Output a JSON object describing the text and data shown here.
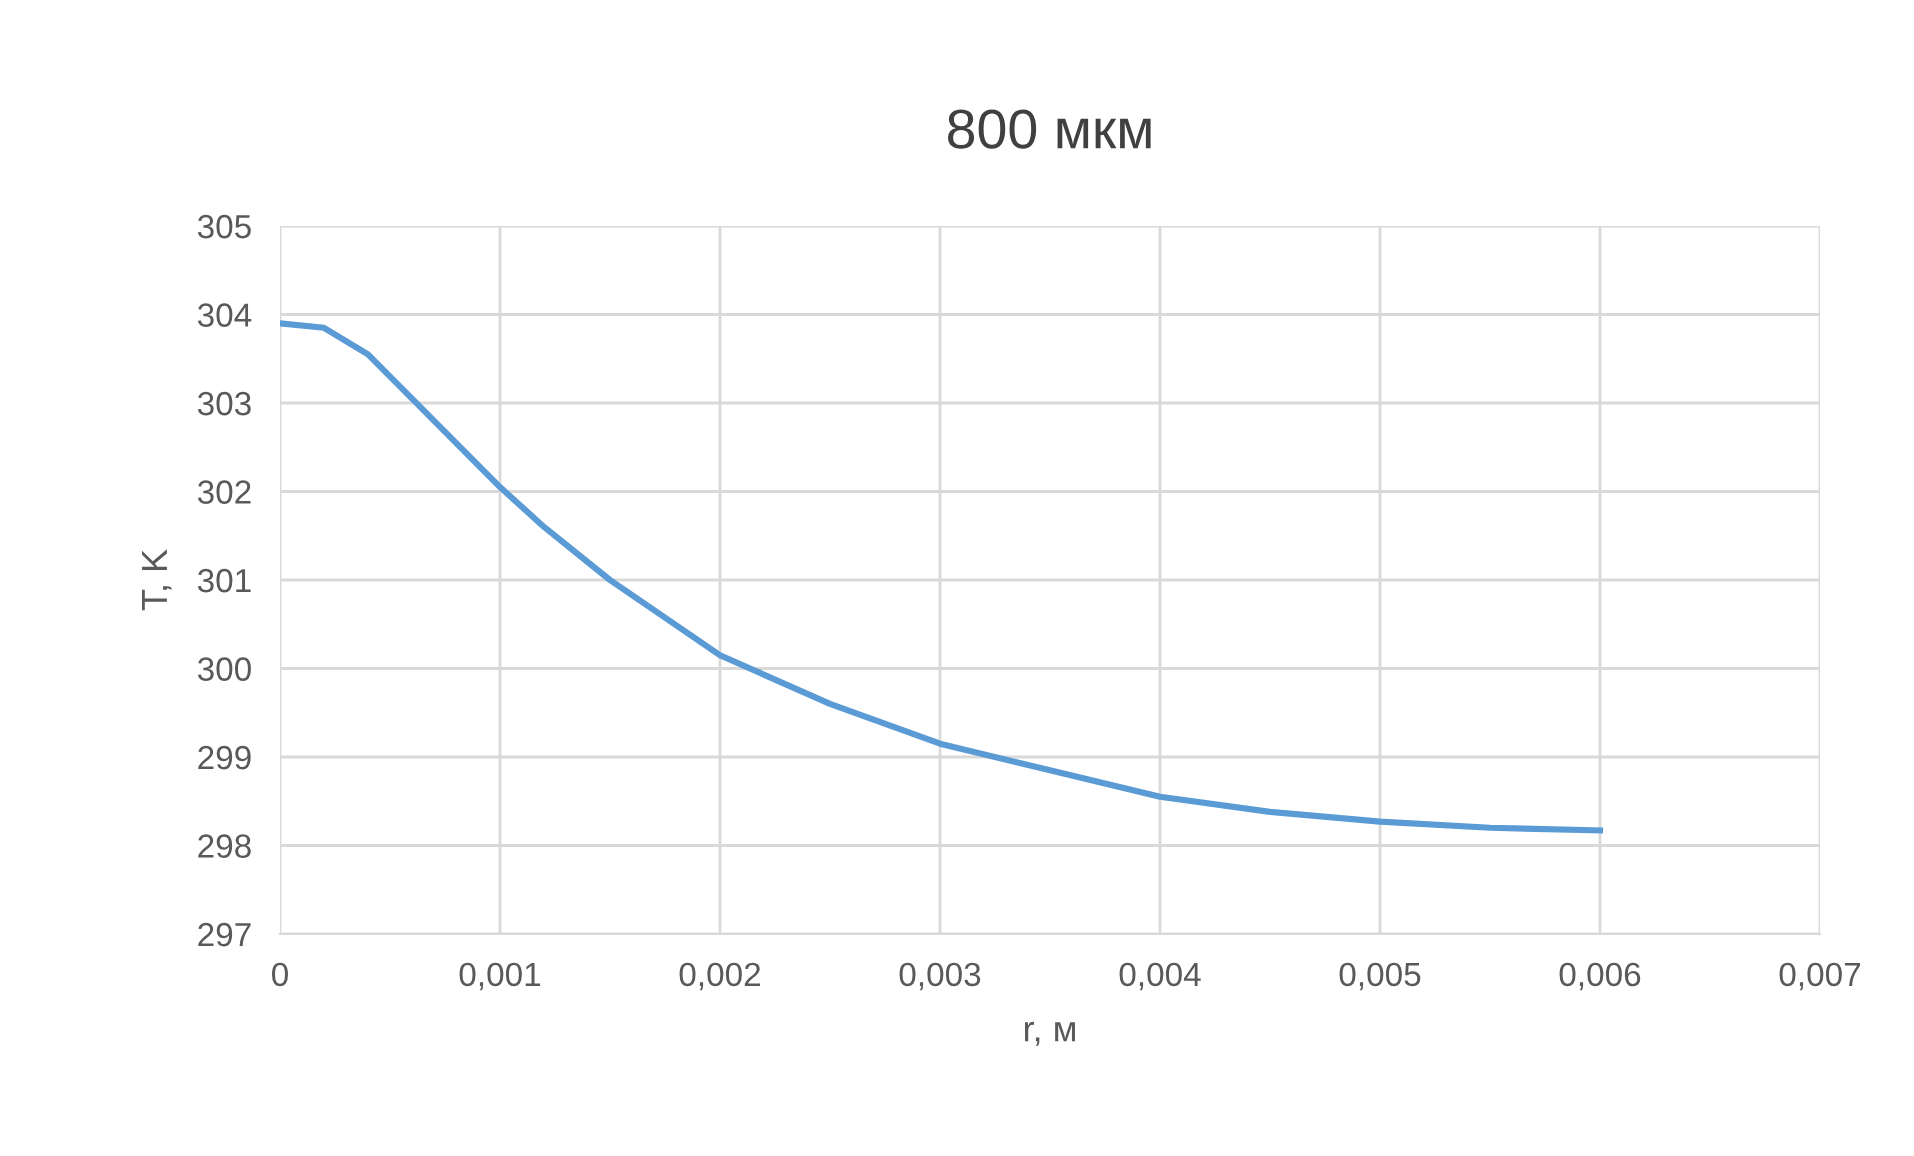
{
  "chart_data": {
    "type": "line",
    "title": "800 мкм",
    "xlabel": "r, м",
    "ylabel": "T, K",
    "x": [
      0,
      0.0002,
      0.0004,
      0.0006,
      0.0008,
      0.001,
      0.0012,
      0.0015,
      0.002,
      0.0025,
      0.003,
      0.0035,
      0.004,
      0.0045,
      0.005,
      0.0055,
      0.006
    ],
    "series": [
      {
        "color": "#5b9bd5",
        "values": [
          303.9,
          303.85,
          303.55,
          303.05,
          302.55,
          302.05,
          301.6,
          301.0,
          300.15,
          299.6,
          299.15,
          298.85,
          298.55,
          298.38,
          298.27,
          298.2,
          298.17
        ]
      }
    ],
    "xlim": [
      0,
      0.007
    ],
    "xticks": [
      0,
      {
        "value": 0.001,
        "label": "0,001"
      },
      {
        "value": 0.002,
        "label": "0,002"
      },
      {
        "value": 0.003,
        "label": "0,003"
      },
      {
        "value": 0.004,
        "label": "0,004"
      },
      {
        "value": 0.005,
        "label": "0,005"
      },
      {
        "value": 0.006,
        "label": "0,006"
      },
      {
        "value": 0.007,
        "label": "0,007"
      }
    ],
    "ylim": [
      297,
      305
    ],
    "yticks": [
      297,
      298,
      299,
      300,
      301,
      302,
      303,
      304,
      305
    ],
    "grid": true,
    "marker": "none",
    "line_style": "solid"
  }
}
